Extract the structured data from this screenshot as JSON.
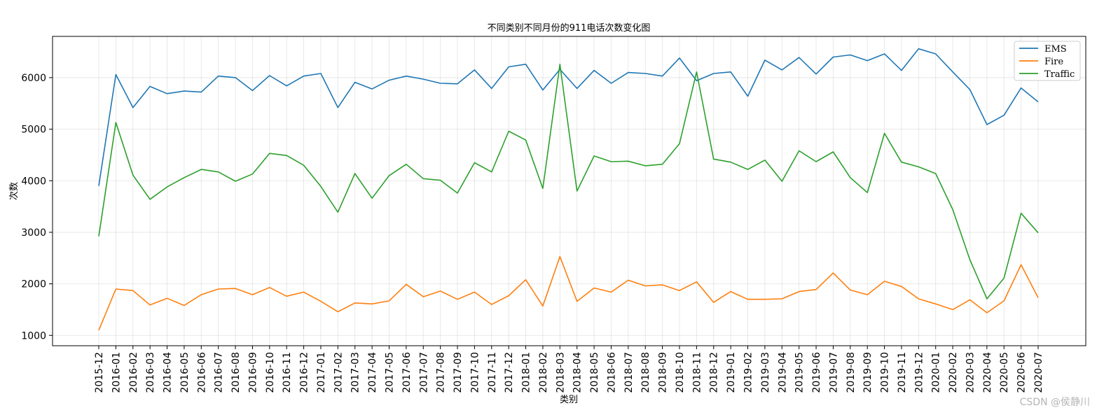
{
  "watermark": "CSDN @侯静川",
  "chart_data": {
    "type": "line",
    "title": "不同类别不同月份的911电话次数变化图",
    "xlabel": "类别",
    "ylabel": "次数",
    "ylim": [
      800,
      6800
    ],
    "yticks": [
      1000,
      2000,
      3000,
      4000,
      5000,
      6000
    ],
    "grid": true,
    "legend_position": "top-right",
    "categories": [
      "2015-12",
      "2016-01",
      "2016-02",
      "2016-03",
      "2016-04",
      "2016-05",
      "2016-06",
      "2016-07",
      "2016-08",
      "2016-09",
      "2016-10",
      "2016-11",
      "2016-12",
      "2017-01",
      "2017-02",
      "2017-03",
      "2017-04",
      "2017-05",
      "2017-06",
      "2017-07",
      "2017-08",
      "2017-09",
      "2017-10",
      "2017-11",
      "2017-12",
      "2018-01",
      "2018-02",
      "2018-03",
      "2018-04",
      "2018-05",
      "2018-06",
      "2018-07",
      "2018-08",
      "2018-09",
      "2018-10",
      "2018-11",
      "2018-12",
      "2019-01",
      "2019-02",
      "2019-03",
      "2019-04",
      "2019-05",
      "2019-06",
      "2019-07",
      "2019-08",
      "2019-09",
      "2019-10",
      "2019-11",
      "2019-12",
      "2020-01",
      "2020-02",
      "2020-03",
      "2020-04",
      "2020-05",
      "2020-06",
      "2020-07"
    ],
    "series": [
      {
        "name": "EMS",
        "color": "#1f77b4",
        "values": [
          3900,
          6060,
          5420,
          5830,
          5690,
          5740,
          5720,
          6030,
          6000,
          5750,
          6040,
          5840,
          6030,
          6080,
          5420,
          5910,
          5780,
          5950,
          6030,
          5970,
          5890,
          5880,
          6150,
          5790,
          6210,
          6260,
          5760,
          6160,
          5790,
          6140,
          5890,
          6100,
          6080,
          6030,
          6380,
          5940,
          6080,
          6110,
          5640,
          6340,
          6150,
          6390,
          6070,
          6400,
          6440,
          6330,
          6460,
          6140,
          6560,
          6460,
          6110,
          5770,
          5090,
          5270,
          5800,
          5530
        ]
      },
      {
        "name": "Fire",
        "color": "#ff7f0e",
        "values": [
          1100,
          1900,
          1870,
          1590,
          1720,
          1580,
          1790,
          1900,
          1910,
          1790,
          1930,
          1760,
          1840,
          1660,
          1460,
          1630,
          1610,
          1670,
          1990,
          1750,
          1860,
          1700,
          1840,
          1600,
          1770,
          2080,
          1570,
          2530,
          1660,
          1920,
          1840,
          2070,
          1960,
          1980,
          1870,
          2040,
          1640,
          1850,
          1700,
          1700,
          1710,
          1850,
          1890,
          2210,
          1880,
          1790,
          2050,
          1950,
          1710,
          1610,
          1500,
          1690,
          1440,
          1670,
          2370,
          1730
        ]
      },
      {
        "name": "Traffic",
        "color": "#2ca02c",
        "values": [
          2920,
          5130,
          4110,
          3640,
          3880,
          4060,
          4220,
          4170,
          3990,
          4130,
          4530,
          4490,
          4300,
          3890,
          3390,
          4140,
          3660,
          4100,
          4320,
          4040,
          4010,
          3760,
          4350,
          4170,
          4960,
          4790,
          3850,
          6260,
          3800,
          4480,
          4370,
          4380,
          4290,
          4320,
          4720,
          6110,
          4420,
          4360,
          4220,
          4400,
          3990,
          4580,
          4370,
          4560,
          4060,
          3770,
          4920,
          4360,
          4270,
          4140,
          3440,
          2470,
          1710,
          2110,
          3370,
          2990
        ]
      }
    ]
  }
}
